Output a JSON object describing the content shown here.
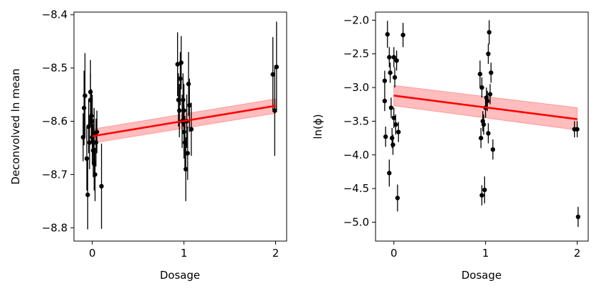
{
  "chart_data": [
    {
      "type": "scatter",
      "xlabel": "Dosage",
      "ylabel": "Deconvolved ln mean",
      "xlim": [
        -0.2,
        2.12
      ],
      "ylim": [
        -8.825,
        -8.395
      ],
      "xticks": [
        0,
        1,
        2
      ],
      "xtick_labels": [
        "0",
        "1",
        "2"
      ],
      "yticks": [
        -8.4,
        -8.5,
        -8.6,
        -8.7,
        -8.8
      ],
      "ytick_labels": [
        "−8.4",
        "−8.5",
        "−8.6",
        "−8.7",
        "−8.8"
      ],
      "points": [
        {
          "x": -0.1,
          "y": -8.63,
          "err": 0.045
        },
        {
          "x": -0.09,
          "y": -8.575,
          "err": 0.07
        },
        {
          "x": -0.08,
          "y": -8.552,
          "err": 0.08
        },
        {
          "x": -0.06,
          "y": -8.67,
          "err": 0.06
        },
        {
          "x": -0.05,
          "y": -8.738,
          "err": 0.065
        },
        {
          "x": -0.04,
          "y": -8.61,
          "err": 0.05
        },
        {
          "x": -0.03,
          "y": -8.64,
          "err": 0.05
        },
        {
          "x": -0.02,
          "y": -8.545,
          "err": 0.06
        },
        {
          "x": -0.02,
          "y": -8.56,
          "err": 0.05
        },
        {
          "x": -0.01,
          "y": -8.59,
          "err": 0.05
        },
        {
          "x": 0.0,
          "y": -8.63,
          "err": 0.05
        },
        {
          "x": 0.0,
          "y": -8.6,
          "err": 0.05
        },
        {
          "x": 0.01,
          "y": -8.655,
          "err": 0.05
        },
        {
          "x": 0.02,
          "y": -8.625,
          "err": 0.05
        },
        {
          "x": 0.02,
          "y": -8.68,
          "err": 0.05
        },
        {
          "x": 0.03,
          "y": -8.7,
          "err": 0.05
        },
        {
          "x": 0.04,
          "y": -8.64,
          "err": 0.045
        },
        {
          "x": 0.05,
          "y": -8.62,
          "err": 0.04
        },
        {
          "x": 0.1,
          "y": -8.722,
          "err": 0.08
        },
        {
          "x": 0.93,
          "y": -8.493,
          "err": 0.06
        },
        {
          "x": 0.94,
          "y": -8.56,
          "err": 0.05
        },
        {
          "x": 0.95,
          "y": -8.58,
          "err": 0.05
        },
        {
          "x": 0.96,
          "y": -8.52,
          "err": 0.05
        },
        {
          "x": 0.97,
          "y": -8.49,
          "err": 0.05
        },
        {
          "x": 0.98,
          "y": -8.6,
          "err": 0.05
        },
        {
          "x": 0.99,
          "y": -8.56,
          "err": 0.05
        },
        {
          "x": 1.0,
          "y": -8.62,
          "err": 0.05
        },
        {
          "x": 1.0,
          "y": -8.58,
          "err": 0.05
        },
        {
          "x": 1.01,
          "y": -8.64,
          "err": 0.05
        },
        {
          "x": 1.02,
          "y": -8.69,
          "err": 0.06
        },
        {
          "x": 1.03,
          "y": -8.6,
          "err": 0.05
        },
        {
          "x": 1.04,
          "y": -8.66,
          "err": 0.05
        },
        {
          "x": 1.05,
          "y": -8.53,
          "err": 0.06
        },
        {
          "x": 1.06,
          "y": -8.57,
          "err": 0.05
        },
        {
          "x": 1.08,
          "y": -8.615,
          "err": 0.05
        },
        {
          "x": 1.97,
          "y": -8.512,
          "err": 0.07
        },
        {
          "x": 1.99,
          "y": -8.58,
          "err": 0.085
        },
        {
          "x": 2.01,
          "y": -8.498,
          "err": 0.085
        }
      ],
      "fit_line": {
        "x": [
          0.0,
          2.0
        ],
        "y": [
          -8.628,
          -8.571
        ]
      },
      "fit_band": {
        "x": [
          0.0,
          2.0
        ],
        "upper": [
          -8.615,
          -8.558
        ],
        "lower": [
          -8.641,
          -8.585
        ]
      }
    },
    {
      "type": "scatter",
      "xlabel": "Dosage",
      "ylabel": "ln(ϕ)",
      "xlim": [
        -0.2,
        2.12
      ],
      "ylim": [
        -5.28,
        -1.88
      ],
      "xticks": [
        0,
        1,
        2
      ],
      "xtick_labels": [
        "0",
        "1",
        "2"
      ],
      "yticks": [
        -2.0,
        -2.5,
        -3.0,
        -3.5,
        -4.0,
        -4.5,
        -5.0
      ],
      "ytick_labels": [
        "−2.0",
        "−2.5",
        "−3.0",
        "−3.5",
        "−4.0",
        "−4.5",
        "−5.0"
      ],
      "points": [
        {
          "x": -0.1,
          "y": -2.9,
          "err": 0.15
        },
        {
          "x": -0.1,
          "y": -3.2,
          "err": 0.15
        },
        {
          "x": -0.09,
          "y": -3.73,
          "err": 0.15
        },
        {
          "x": -0.07,
          "y": -2.21,
          "err": 0.2
        },
        {
          "x": -0.05,
          "y": -2.55,
          "err": 0.15
        },
        {
          "x": -0.05,
          "y": -4.27,
          "err": 0.2
        },
        {
          "x": -0.04,
          "y": -2.78,
          "err": 0.15
        },
        {
          "x": -0.03,
          "y": -3.3,
          "err": 0.15
        },
        {
          "x": -0.02,
          "y": -3.75,
          "err": 0.15
        },
        {
          "x": -0.01,
          "y": -3.85,
          "err": 0.15
        },
        {
          "x": 0.0,
          "y": -2.55,
          "err": 0.15
        },
        {
          "x": 0.0,
          "y": -3.45,
          "err": 0.15
        },
        {
          "x": 0.01,
          "y": -2.85,
          "err": 0.15
        },
        {
          "x": 0.02,
          "y": -3.55,
          "err": 0.15
        },
        {
          "x": 0.03,
          "y": -2.6,
          "err": 0.15
        },
        {
          "x": 0.04,
          "y": -4.64,
          "err": 0.2
        },
        {
          "x": 0.05,
          "y": -3.66,
          "err": 0.15
        },
        {
          "x": 0.1,
          "y": -2.22,
          "err": 0.18
        },
        {
          "x": 0.94,
          "y": -2.8,
          "err": 0.2
        },
        {
          "x": 0.95,
          "y": -3.75,
          "err": 0.15
        },
        {
          "x": 0.96,
          "y": -3.0,
          "err": 0.15
        },
        {
          "x": 0.96,
          "y": -4.6,
          "err": 0.15
        },
        {
          "x": 0.97,
          "y": -3.5,
          "err": 0.15
        },
        {
          "x": 0.98,
          "y": -3.55,
          "err": 0.15
        },
        {
          "x": 0.99,
          "y": -4.52,
          "err": 0.2
        },
        {
          "x": 1.0,
          "y": -3.3,
          "err": 0.15
        },
        {
          "x": 1.01,
          "y": -3.15,
          "err": 0.15
        },
        {
          "x": 1.02,
          "y": -3.2,
          "err": 0.15
        },
        {
          "x": 1.03,
          "y": -2.5,
          "err": 0.15
        },
        {
          "x": 1.03,
          "y": -3.68,
          "err": 0.15
        },
        {
          "x": 1.04,
          "y": -2.18,
          "err": 0.18
        },
        {
          "x": 1.05,
          "y": -3.1,
          "err": 0.15
        },
        {
          "x": 1.06,
          "y": -2.78,
          "err": 0.15
        },
        {
          "x": 1.08,
          "y": -3.92,
          "err": 0.15
        },
        {
          "x": 1.97,
          "y": -3.62,
          "err": 0.12
        },
        {
          "x": 2.0,
          "y": -3.62,
          "err": 0.12
        },
        {
          "x": 2.01,
          "y": -4.92,
          "err": 0.15
        }
      ],
      "fit_line": {
        "x": [
          0.0,
          2.0
        ],
        "y": [
          -3.12,
          -3.47
        ]
      },
      "fit_band": {
        "x": [
          0.0,
          2.0
        ],
        "upper": [
          -2.97,
          -3.3
        ],
        "lower": [
          -3.27,
          -3.63
        ]
      }
    }
  ],
  "colors": {
    "points": "#000000",
    "fit_line": "#ff0000",
    "fit_band": "#ff9999",
    "axes": "#000000"
  }
}
